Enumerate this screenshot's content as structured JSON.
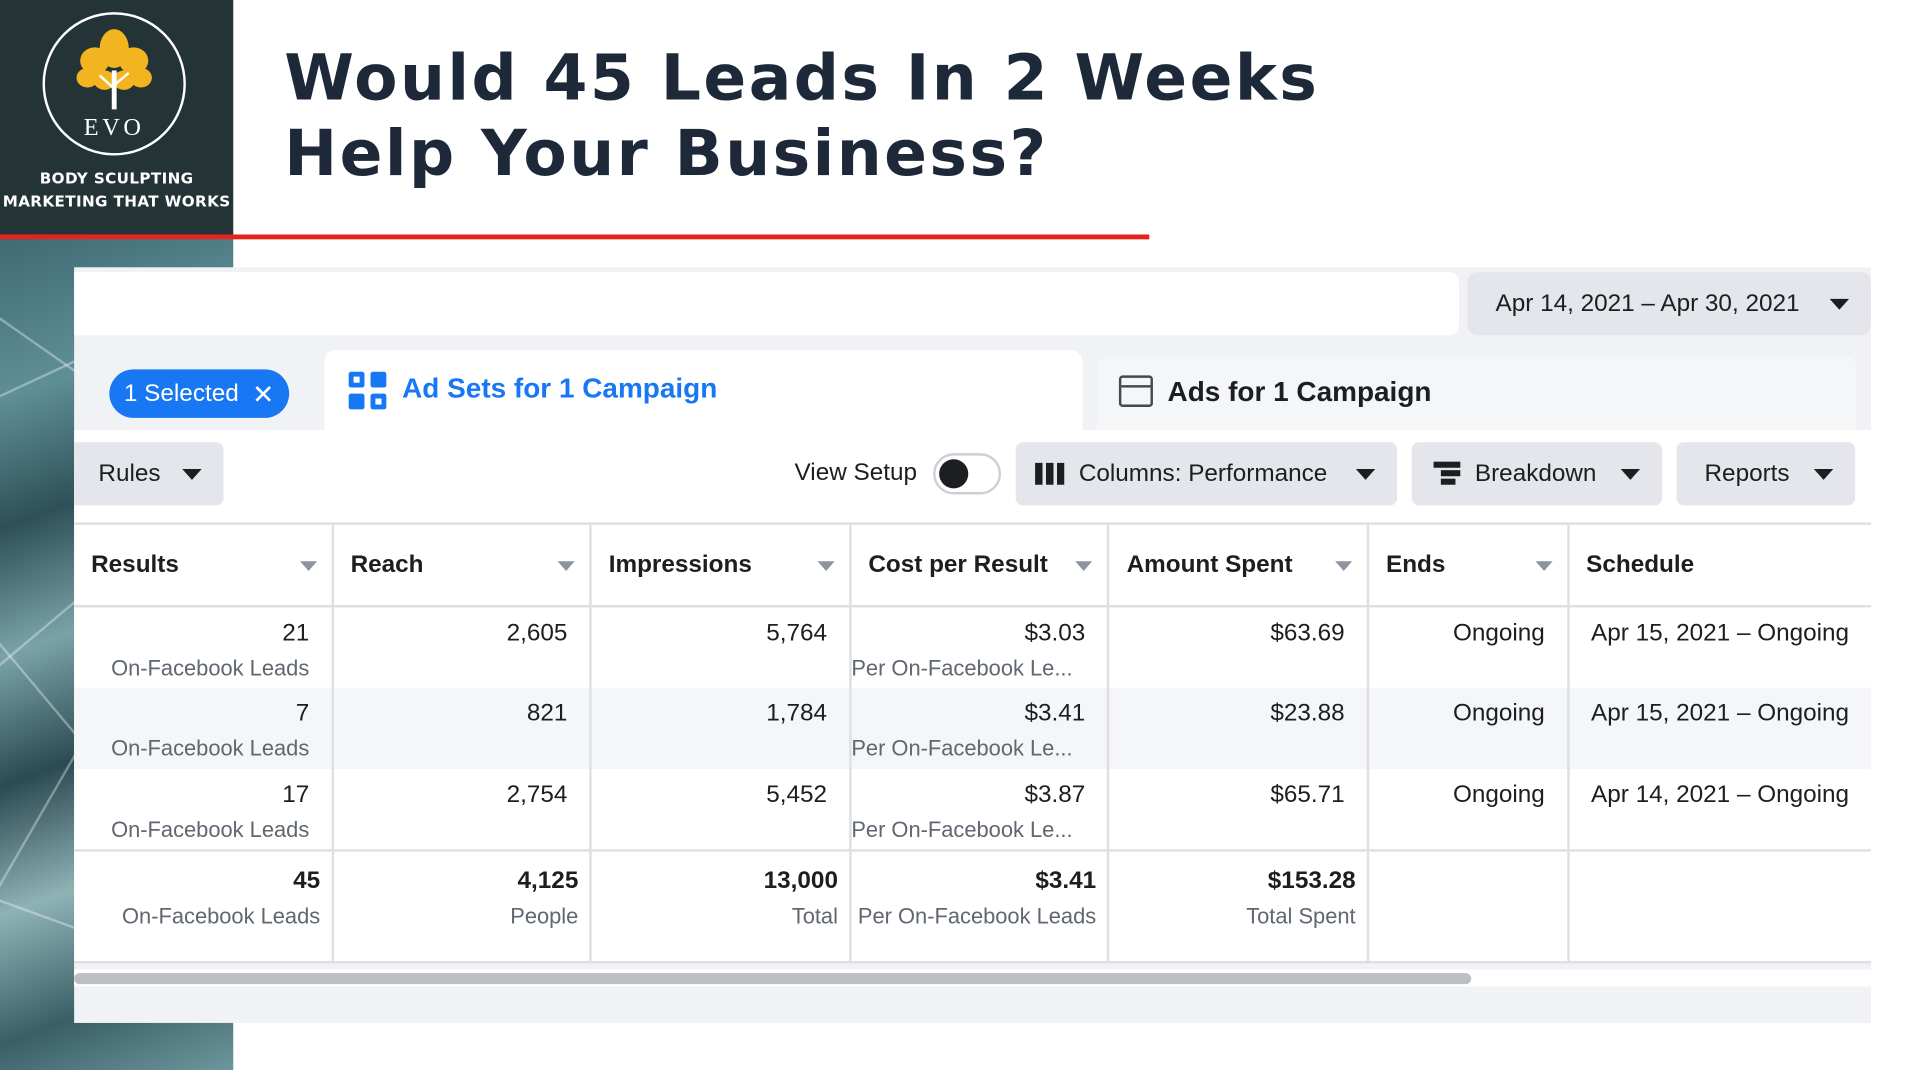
{
  "brand": {
    "logo_text": "EVO",
    "tagline_line1": "BODY SCULPTING",
    "tagline_line2": "MARKETING THAT WORKS"
  },
  "headline": {
    "line1": "Would 45 Leads In 2 Weeks",
    "line2": "Help Your Business?"
  },
  "colors": {
    "accent_red": "#e52420",
    "facebook_blue": "#1877f2",
    "logo_bg": "#243436",
    "headline_color": "#1d2838"
  },
  "ads_manager": {
    "date_range": "Apr 14, 2021 – Apr 30, 2021",
    "selected_pill": "1 Selected",
    "tabs": {
      "active": "Ad Sets for 1 Campaign",
      "other": "Ads for 1 Campaign"
    },
    "toolbar": {
      "rules": "Rules",
      "view_setup": "View Setup",
      "columns": "Columns: Performance",
      "breakdown": "Breakdown",
      "reports": "Reports"
    },
    "columns": [
      "Results",
      "Reach",
      "Impressions",
      "Cost per Result",
      "Amount Spent",
      "Ends",
      "Schedule"
    ],
    "rows": [
      {
        "results": "21",
        "results_sub": "On-Facebook Leads",
        "reach": "2,605",
        "impressions": "5,764",
        "cpr": "$3.03",
        "cpr_sub": "Per On-Facebook Le...",
        "spent": "$63.69",
        "ends": "Ongoing",
        "schedule": "Apr 15, 2021 – Ongoing"
      },
      {
        "results": "7",
        "results_sub": "On-Facebook Leads",
        "reach": "821",
        "impressions": "1,784",
        "cpr": "$3.41",
        "cpr_sub": "Per On-Facebook Le...",
        "spent": "$23.88",
        "ends": "Ongoing",
        "schedule": "Apr 15, 2021 – Ongoing"
      },
      {
        "results": "17",
        "results_sub": "On-Facebook Leads",
        "reach": "2,754",
        "impressions": "5,452",
        "cpr": "$3.87",
        "cpr_sub": "Per On-Facebook Le...",
        "spent": "$65.71",
        "ends": "Ongoing",
        "schedule": "Apr 14, 2021 – Ongoing"
      }
    ],
    "totals": {
      "results": "45",
      "results_sub": "On-Facebook Leads",
      "reach": "4,125",
      "reach_sub": "People",
      "impressions": "13,000",
      "impressions_sub": "Total",
      "cpr": "$3.41",
      "cpr_sub": "Per On-Facebook Leads",
      "spent": "$153.28",
      "spent_sub": "Total Spent"
    }
  },
  "icons": [
    "tree-logo-icon",
    "close-icon",
    "grid-icon",
    "window-icon",
    "columns-icon",
    "breakdown-icon",
    "chevron-down-icon"
  ]
}
